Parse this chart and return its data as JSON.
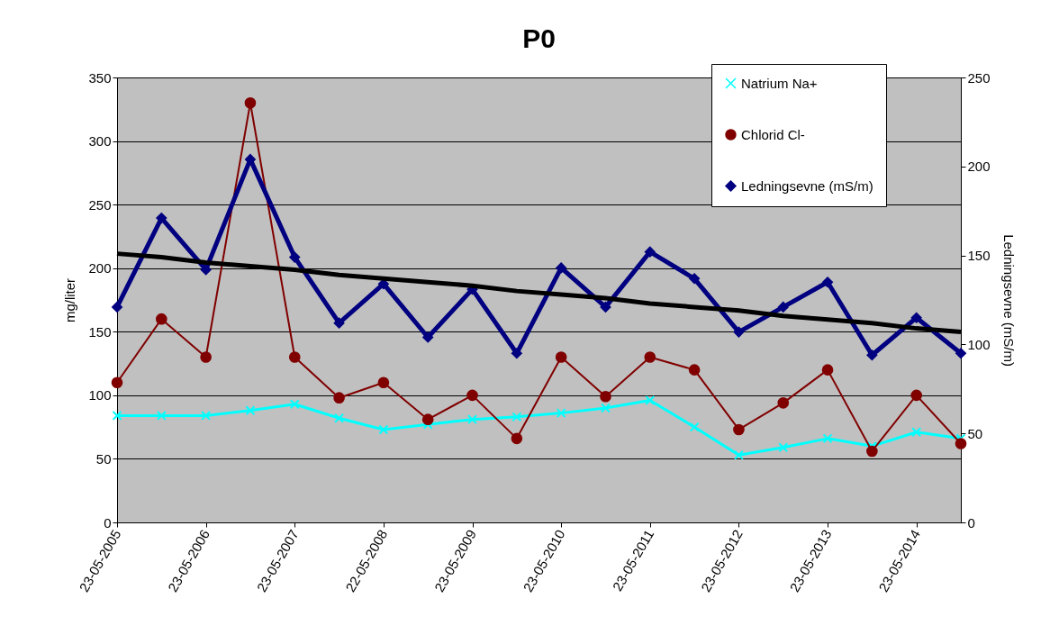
{
  "chart_data": {
    "type": "line",
    "title": "P0",
    "ylabel": "mg/liter",
    "y2label": "Ledningsevne (mS/m)",
    "categories": [
      "23-05-2005",
      null,
      "23-05-2006",
      null,
      "23-05-2007",
      null,
      "22-05-2008",
      null,
      "23-05-2009",
      null,
      "23-05-2010",
      null,
      "23-05-2011",
      null,
      "23-05-2012",
      null,
      "23-05-2013",
      null,
      "23-05-2014",
      null
    ],
    "series": [
      {
        "name": "Natrium Na+",
        "color": "#00ffff",
        "marker": "cross",
        "values": [
          84,
          84,
          84,
          88,
          93,
          82,
          73,
          77,
          81,
          83,
          86,
          90,
          96,
          75,
          53,
          59,
          66,
          60,
          71,
          66
        ]
      },
      {
        "name": "Chlorid Cl-",
        "color": "#800000",
        "marker": "circle",
        "values": [
          110,
          160,
          130,
          330,
          130,
          98,
          110,
          81,
          100,
          66,
          130,
          99,
          130,
          120,
          73,
          94,
          120,
          56,
          100,
          62
        ]
      },
      {
        "name": "Ledningsevne (mS/m)",
        "color": "#000080",
        "marker": "diamond",
        "axis": "y2",
        "values": [
          121,
          171,
          142,
          204,
          149,
          112,
          134,
          104,
          131,
          95,
          143,
          121,
          152,
          137,
          107,
          121,
          135,
          94,
          115,
          95
        ]
      },
      {
        "type": "line",
        "color": "#000000",
        "marker": "none",
        "axis": "y2",
        "values": [
          151,
          149,
          146,
          144,
          142,
          139,
          137,
          135,
          133,
          130,
          128,
          126,
          123,
          121,
          119,
          116,
          114,
          112,
          109,
          107
        ]
      }
    ],
    "ylim": [
      0,
      350
    ],
    "yticks": [
      0,
      50,
      100,
      150,
      200,
      250,
      300,
      350
    ],
    "y2lim": [
      0,
      250
    ],
    "y2ticks": [
      0,
      50,
      100,
      150,
      200,
      250
    ],
    "grid": "y",
    "legend": "top right",
    "line_style": "solid"
  }
}
